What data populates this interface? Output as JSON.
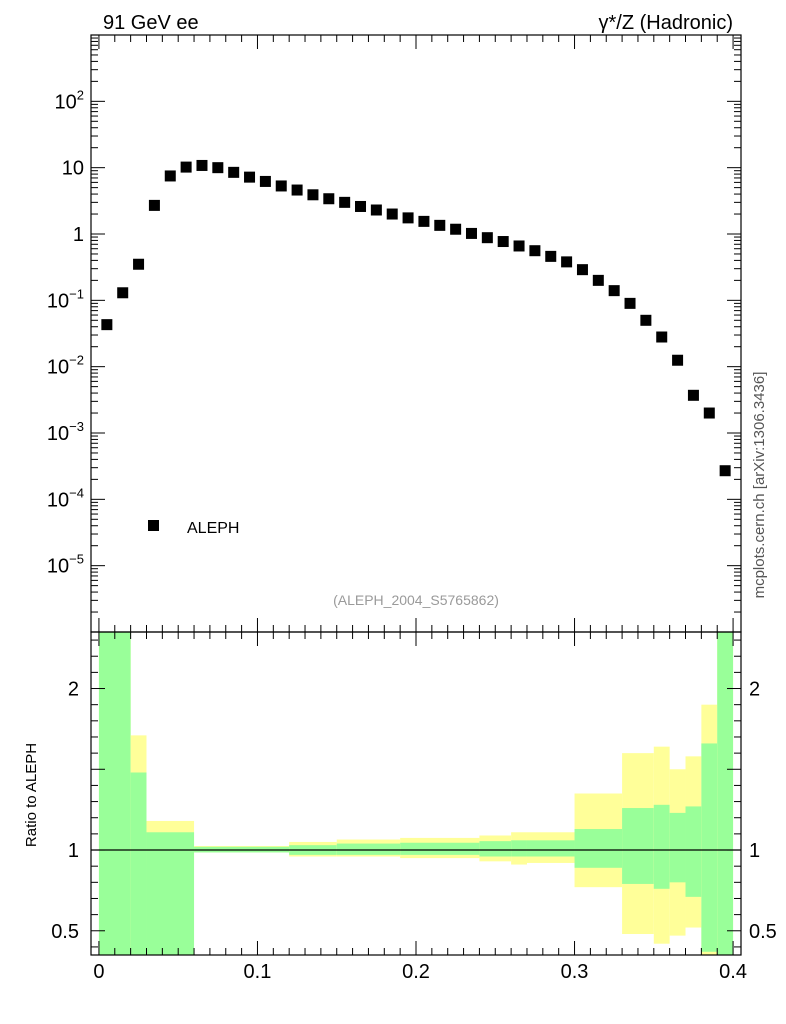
{
  "header": {
    "left_title": "91 GeV ee",
    "right_title": "γ*/Z (Hadronic)"
  },
  "side_label": "mcplots.cern.ch [arXiv:1306.3436]",
  "watermark": "(ALEPH_2004_S5765862)",
  "chart_data": [
    {
      "type": "scatter",
      "scale": "log",
      "legend": {
        "label": "ALEPH",
        "position": "bottom-left"
      },
      "xlim": [
        -0.005,
        0.405
      ],
      "ylim_log10": [
        -6.0,
        3.0
      ],
      "y_tick_labels": [
        {
          "exp": -5,
          "text": "10",
          "sup": "−5"
        },
        {
          "exp": -4,
          "text": "10",
          "sup": "−4"
        },
        {
          "exp": -3,
          "text": "10",
          "sup": "−3"
        },
        {
          "exp": -2,
          "text": "10",
          "sup": "−2"
        },
        {
          "exp": -1,
          "text": "10",
          "sup": "−1"
        },
        {
          "exp": 0,
          "text": "1",
          "sup": ""
        },
        {
          "exp": 1,
          "text": "10",
          "sup": ""
        },
        {
          "exp": 2,
          "text": "10",
          "sup": "2"
        }
      ],
      "series": [
        {
          "name": "ALEPH",
          "color": "#000000",
          "x": [
            0.005,
            0.015,
            0.025,
            0.035,
            0.045,
            0.055,
            0.065,
            0.075,
            0.085,
            0.095,
            0.105,
            0.115,
            0.125,
            0.135,
            0.145,
            0.155,
            0.165,
            0.175,
            0.185,
            0.195,
            0.205,
            0.215,
            0.225,
            0.235,
            0.245,
            0.255,
            0.265,
            0.275,
            0.285,
            0.295,
            0.305,
            0.315,
            0.325,
            0.335,
            0.345,
            0.355,
            0.365,
            0.375,
            0.385,
            0.395
          ],
          "y": [
            0.043,
            0.13,
            0.35,
            2.7,
            7.5,
            10.2,
            10.8,
            10.0,
            8.5,
            7.2,
            6.2,
            5.3,
            4.6,
            3.9,
            3.4,
            3.0,
            2.6,
            2.3,
            2.0,
            1.75,
            1.55,
            1.35,
            1.18,
            1.02,
            0.88,
            0.77,
            0.66,
            0.56,
            0.46,
            0.38,
            0.29,
            0.2,
            0.14,
            0.09,
            0.05,
            0.028,
            0.0125,
            0.0037,
            0.002,
            0.00027
          ]
        }
      ]
    },
    {
      "type": "area",
      "ylabel": "Ratio to ALEPH",
      "xlim": [
        -0.005,
        0.405
      ],
      "ylim": [
        0.35,
        2.35
      ],
      "x_ticks": [
        {
          "value": 0.0,
          "label": "0"
        },
        {
          "value": 0.1,
          "label": "0.1"
        },
        {
          "value": 0.2,
          "label": "0.2"
        },
        {
          "value": 0.3,
          "label": "0.3"
        },
        {
          "value": 0.4,
          "label": "0.4"
        }
      ],
      "y_ticks": [
        {
          "value": 0.5,
          "label": "0.5"
        },
        {
          "value": 1.0,
          "label": "1"
        },
        {
          "value": 2.0,
          "label": "2"
        }
      ],
      "reference_line": 1.0,
      "bands": {
        "outer_color": "#ffff99",
        "inner_color": "#99ff99",
        "bins": [
          {
            "x0": 0.0,
            "x1": 0.02,
            "outer": [
              0.3,
              2.4
            ],
            "inner": [
              0.3,
              2.4
            ]
          },
          {
            "x0": 0.02,
            "x1": 0.03,
            "outer": [
              0.3,
              1.71
            ],
            "inner": [
              0.3,
              1.48
            ]
          },
          {
            "x0": 0.03,
            "x1": 0.06,
            "outer": [
              0.91,
              1.18
            ],
            "inner": [
              0.3,
              1.11
            ]
          },
          {
            "x0": 0.06,
            "x1": 0.12,
            "outer": [
              0.985,
              1.025
            ],
            "inner": [
              0.985,
              1.02
            ]
          },
          {
            "x0": 0.12,
            "x1": 0.15,
            "outer": [
              0.96,
              1.05
            ],
            "inner": [
              0.97,
              1.03
            ]
          },
          {
            "x0": 0.15,
            "x1": 0.19,
            "outer": [
              0.96,
              1.065
            ],
            "inner": [
              0.97,
              1.04
            ]
          },
          {
            "x0": 0.19,
            "x1": 0.24,
            "outer": [
              0.95,
              1.075
            ],
            "inner": [
              0.97,
              1.045
            ]
          },
          {
            "x0": 0.24,
            "x1": 0.26,
            "outer": [
              0.93,
              1.09
            ],
            "inner": [
              0.96,
              1.055
            ]
          },
          {
            "x0": 0.26,
            "x1": 0.27,
            "outer": [
              0.91,
              1.11
            ],
            "inner": [
              0.96,
              1.06
            ]
          },
          {
            "x0": 0.27,
            "x1": 0.3,
            "outer": [
              0.92,
              1.11
            ],
            "inner": [
              0.96,
              1.06
            ]
          },
          {
            "x0": 0.3,
            "x1": 0.33,
            "outer": [
              0.77,
              1.35
            ],
            "inner": [
              0.89,
              1.13
            ]
          },
          {
            "x0": 0.33,
            "x1": 0.35,
            "outer": [
              0.48,
              1.6
            ],
            "inner": [
              0.79,
              1.26
            ]
          },
          {
            "x0": 0.35,
            "x1": 0.36,
            "outer": [
              0.42,
              1.64
            ],
            "inner": [
              0.76,
              1.28
            ]
          },
          {
            "x0": 0.36,
            "x1": 0.37,
            "outer": [
              0.47,
              1.5
            ],
            "inner": [
              0.8,
              1.23
            ]
          },
          {
            "x0": 0.37,
            "x1": 0.38,
            "outer": [
              0.52,
              1.58
            ],
            "inner": [
              0.71,
              1.27
            ]
          },
          {
            "x0": 0.38,
            "x1": 0.39,
            "outer": [
              0.3,
              1.9
            ],
            "inner": [
              0.37,
              1.66
            ]
          },
          {
            "x0": 0.39,
            "x1": 0.4,
            "outer": [
              0.3,
              2.4
            ],
            "inner": [
              0.3,
              2.4
            ]
          }
        ]
      }
    }
  ]
}
